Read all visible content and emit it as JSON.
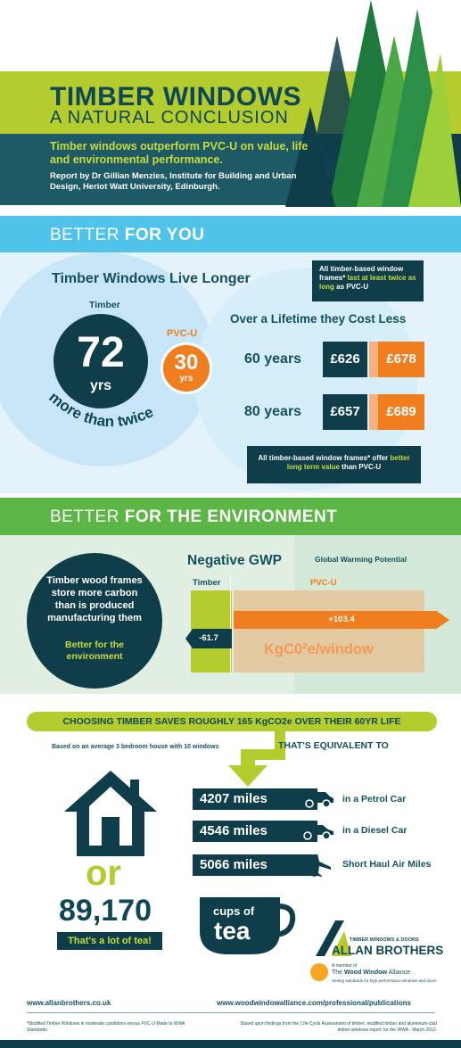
{
  "header": {
    "title": "TIMBER WINDOWS",
    "subtitle": "A NATURAL CONCLUSION",
    "intro": "Timber windows outperform PVC-U on value, life and environmental performance.",
    "report": "Report by Dr Gillian Menzies, Institute for Building and Urban Design, Heriot Watt University, Edinburgh."
  },
  "better_you": {
    "section_prefix": "BETTER ",
    "section_bold": "FOR YOU",
    "live_heading": "Timber Windows Live Longer",
    "box_top_a": "All timber-based window frames* ",
    "box_top_hl": "last at least twice as long",
    "box_top_b": " as PVC-U",
    "timber_label": "Timber",
    "timber_years": "72",
    "timber_unit": "yrs",
    "pvcu_label": "PVC-U",
    "pvcu_years": "30",
    "pvcu_unit": "yrs",
    "more_than_twice": "more than twice",
    "cost_heading": "Over a Lifetime they Cost Less",
    "costs": [
      {
        "period": "60 years",
        "timber": "£626",
        "pvcu": "£678"
      },
      {
        "period": "80 years",
        "timber": "£657",
        "pvcu": "£689"
      }
    ],
    "box_bot_a": "All timber-based window frames* offer ",
    "box_bot_hl": "better long term value",
    "box_bot_b": " than PVC-U"
  },
  "better_env": {
    "section_prefix": "BETTER ",
    "section_bold": "FOR THE ENVIRONMENT",
    "carbon_text": "Timber wood frames store more carbon than is produced manufacturing them",
    "carbon_sub": "Better for the environment",
    "gwp_heading": "Negative GWP",
    "gwp_sub": "Global Warming Potential",
    "timber_label": "Timber",
    "pvcu_label": "PVC-U",
    "timber_value": "-61.7",
    "pvcu_value": "+103.4",
    "unit": "KgC0²e/window"
  },
  "savings": {
    "headline": "CHOOSING TIMBER SAVES ROUGHLY 165 KgCO2e OVER THEIR 60YR LIFE",
    "basis": "Based on an average 3 bedroom house with 10 windows",
    "equivalent": "THAT'S EQUIVALENT TO",
    "items": [
      {
        "miles": "4207 miles",
        "via": "in a Petrol Car",
        "icon": "car-icon"
      },
      {
        "miles": "4546 miles",
        "via": "in a Diesel Car",
        "icon": "car-icon"
      },
      {
        "miles": "5066 miles",
        "via": "Short Haul Air Miles",
        "icon": "plane-icon"
      }
    ],
    "or": "or",
    "tea_count": "89,170",
    "tea_note": "That's a lot of tea!",
    "cups_of": "cups of",
    "tea": "tea"
  },
  "logos": {
    "ab_small": "TIMBER WINDOWS & DOORS",
    "ab_big": "ALLAN BROTHERS",
    "wwa_member": "A member of",
    "wwa_the": "The ",
    "wwa_name": "Wood Window",
    "wwa_alliance": " Alliance",
    "wwa_tag": "Setting standards for high performance windows and doors"
  },
  "footer": {
    "url_left": "www.allanbrothers.co.uk",
    "url_right": "www.woodwindowalliance.com/professional/publications",
    "note_left": "*Modified Timber Windows in moderate conditions versus PVC-U Made to WWA Standards.",
    "note_right": "Based upon findings from the 'Life Cycle Assessment of timber, modified timber and aluminium-clad timber windows report' for the WWA - March 2013."
  },
  "colors": {
    "navy": "#0f3d4a",
    "lime": "#b4cc2e",
    "orange": "#f07d1e",
    "sky": "#4fc3ea",
    "green": "#5cb646"
  }
}
